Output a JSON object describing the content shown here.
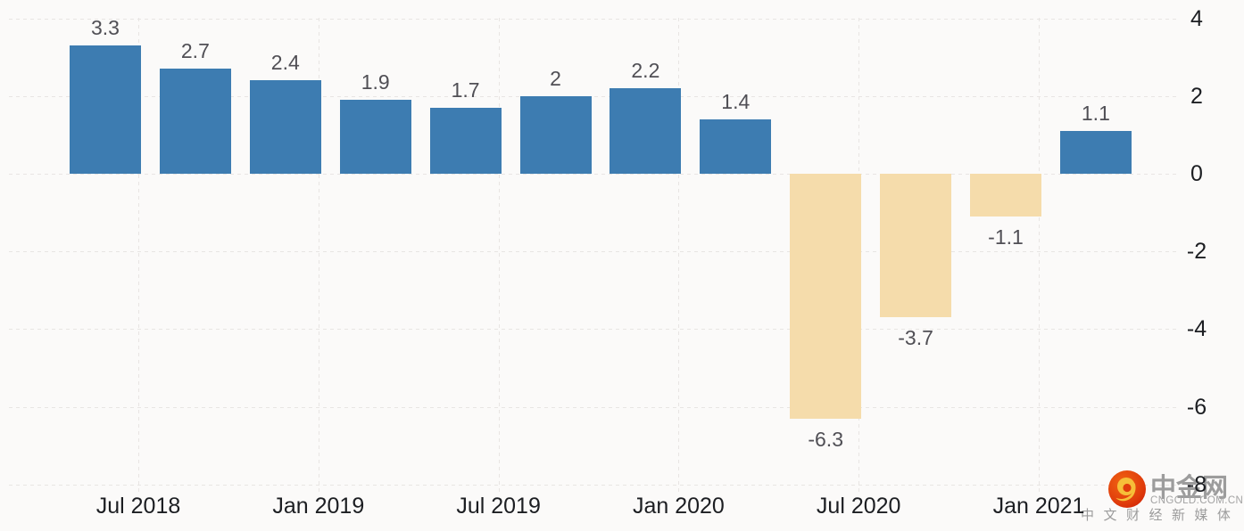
{
  "chart_data": {
    "type": "bar",
    "title": "",
    "description": "Quarterly percent-change bar chart, positive bars blue, negative bars tan",
    "values": [
      3.3,
      2.7,
      2.4,
      1.9,
      1.7,
      2,
      2.2,
      1.4,
      -6.3,
      -3.7,
      -1.1,
      1.1
    ],
    "bar_value_labels": [
      "3.3",
      "2.7",
      "2.4",
      "1.9",
      "1.7",
      "2",
      "2.2",
      "1.4",
      "-6.3",
      "-3.7",
      "-1.1",
      "1.1"
    ],
    "x_tick_labels": [
      "Jul 2018",
      "Jan 2019",
      "Jul 2019",
      "Jan 2020",
      "Jul 2020",
      "Jan 2021"
    ],
    "y_tick_labels": [
      "4",
      "2",
      "0",
      "-2",
      "-4",
      "-6",
      "-8"
    ],
    "y_tick_values": [
      4,
      2,
      0,
      -2,
      -4,
      -6,
      -8
    ],
    "ylim": [
      -8.4,
      4.4
    ],
    "xlabel": "",
    "ylabel": "",
    "legend": "none",
    "grid": "dashed horizontal and vertical",
    "colors": {
      "positive_bar": "#3d7cb1",
      "negative_bar": "#f5dcab",
      "background": "#fbfaf9",
      "gridline": "#e8e5e3",
      "value_label": "#504f55",
      "axis_label": "#1c1e22"
    }
  },
  "watermark": {
    "brand": "中金网",
    "domain": "CNGOLD.COM.CN",
    "tagline": "中文财经新媒体",
    "logo": "cngold-swirl-logo",
    "text_color": "#9c9c9c",
    "logo_red": "#dd3109",
    "logo_orange": "#f06312",
    "logo_gold": "#f6bf39"
  }
}
